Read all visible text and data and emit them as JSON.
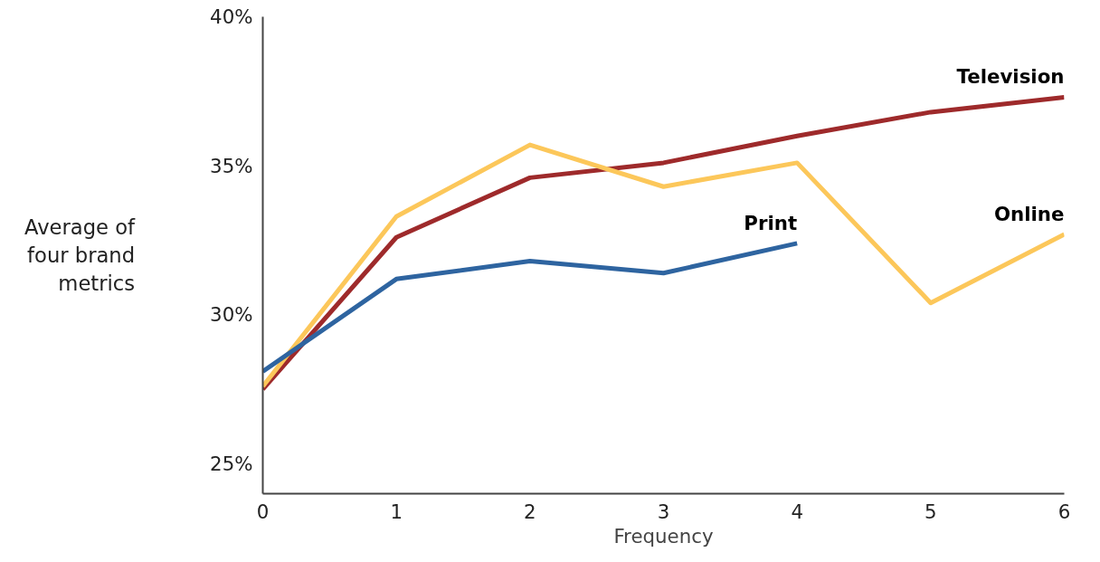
{
  "chart_data": {
    "type": "line",
    "xlabel": "Frequency",
    "ylabel": "Average of four brand metrics",
    "x": [
      0,
      1,
      2,
      3,
      4,
      5,
      6
    ],
    "series": [
      {
        "name": "Television",
        "color": "#9e2a2b",
        "values": [
          27.5,
          32.6,
          34.6,
          35.1,
          36.0,
          36.8,
          37.3
        ]
      },
      {
        "name": "Online",
        "color": "#fcc75a",
        "values": [
          27.6,
          33.3,
          35.7,
          34.3,
          35.1,
          30.4,
          32.7
        ]
      },
      {
        "name": "Print",
        "color": "#2e64a0",
        "values": [
          28.1,
          31.2,
          31.8,
          31.4,
          32.4,
          null,
          null
        ]
      }
    ],
    "xlim": [
      0,
      6
    ],
    "xticks": [
      0,
      1,
      2,
      3,
      4,
      5,
      6
    ],
    "ylim": [
      24,
      40
    ],
    "yticks": [
      {
        "value": 25,
        "label": "25%"
      },
      {
        "value": 30,
        "label": "30%"
      },
      {
        "value": 35,
        "label": "35%"
      },
      {
        "value": 40,
        "label": "40%"
      }
    ],
    "grid": false,
    "marker": "none",
    "line_style": "solid"
  }
}
